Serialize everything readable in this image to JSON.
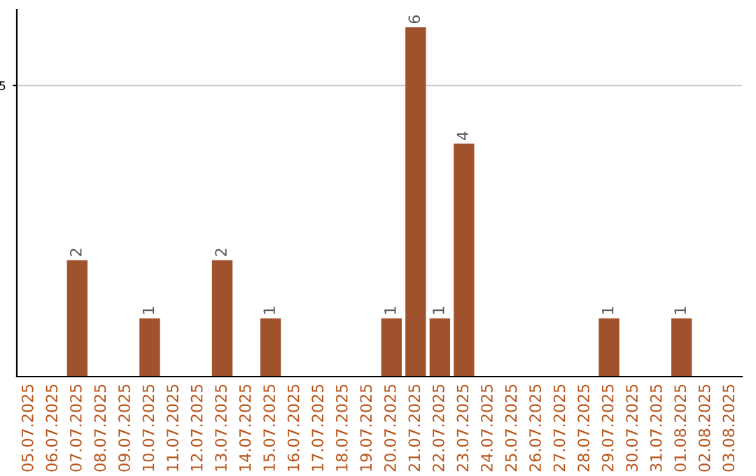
{
  "chart_data": {
    "type": "bar",
    "categories": [
      "05.07.2025",
      "06.07.2025",
      "07.07.2025",
      "08.07.2025",
      "09.07.2025",
      "10.07.2025",
      "11.07.2025",
      "12.07.2025",
      "13.07.2025",
      "14.07.2025",
      "15.07.2025",
      "16.07.2025",
      "17.07.2025",
      "18.07.2025",
      "19.07.2025",
      "20.07.2025",
      "21.07.2025",
      "22.07.2025",
      "23.07.2025",
      "24.07.2025",
      "25.07.2025",
      "26.07.2025",
      "27.07.2025",
      "28.07.2025",
      "29.07.2025",
      "30.07.2025",
      "31.07.2025",
      "01.08.2025",
      "02.08.2025",
      "03.08.2025"
    ],
    "values": [
      0,
      0,
      2,
      0,
      0,
      1,
      0,
      0,
      2,
      0,
      1,
      0,
      0,
      0,
      0,
      1,
      6,
      1,
      4,
      0,
      0,
      0,
      0,
      0,
      1,
      0,
      0,
      1,
      0,
      0
    ],
    "color": "#a0522d",
    "value_labels": [
      null,
      null,
      "2",
      null,
      null,
      "1",
      null,
      null,
      "2",
      null,
      "1",
      null,
      null,
      null,
      null,
      "1",
      "6",
      "1",
      "4",
      null,
      null,
      null,
      null,
      null,
      "1",
      null,
      null,
      "1",
      null,
      null
    ],
    "ylim": [
      0,
      6.3
    ],
    "yticks": [
      5
    ],
    "grid": "y"
  }
}
